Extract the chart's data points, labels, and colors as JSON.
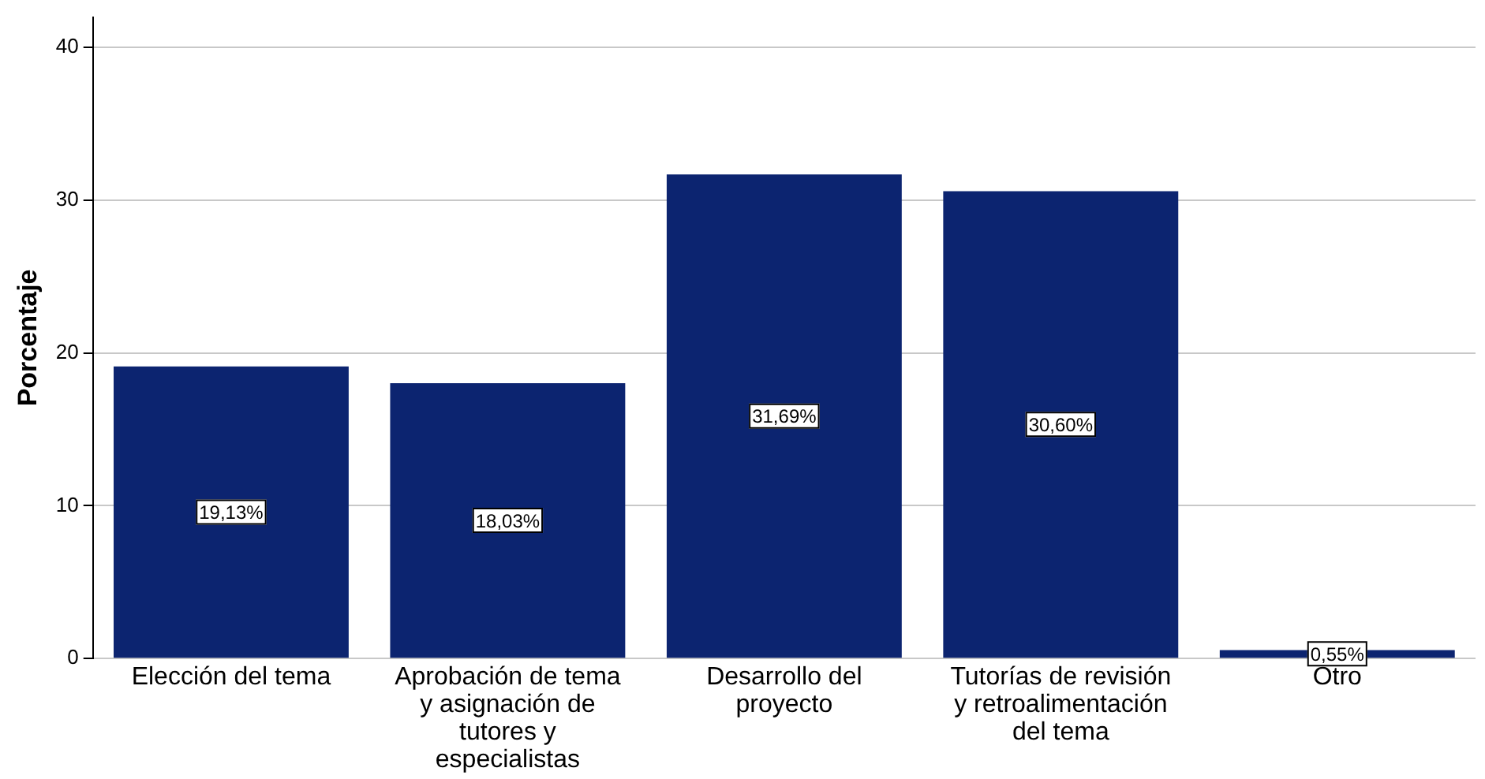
{
  "chart_data": {
    "type": "bar",
    "ylabel": "Porcentaje",
    "categories": [
      "Elección del tema",
      "Aprobación de tema y asignación de tutores y especialistas",
      "Desarrollo del proyecto",
      "Tutorías de revisión y retroalimentación del tema",
      "Otro"
    ],
    "values": [
      19.13,
      18.03,
      31.69,
      30.6,
      0.55
    ],
    "value_labels": [
      "19,13%",
      "18,03%",
      "31,69%",
      "30,60%",
      "0,55%"
    ],
    "color": "#0c2470",
    "ylim": [
      0,
      42
    ],
    "yticks": [
      0,
      10,
      20,
      30,
      40
    ],
    "grid": "y"
  }
}
